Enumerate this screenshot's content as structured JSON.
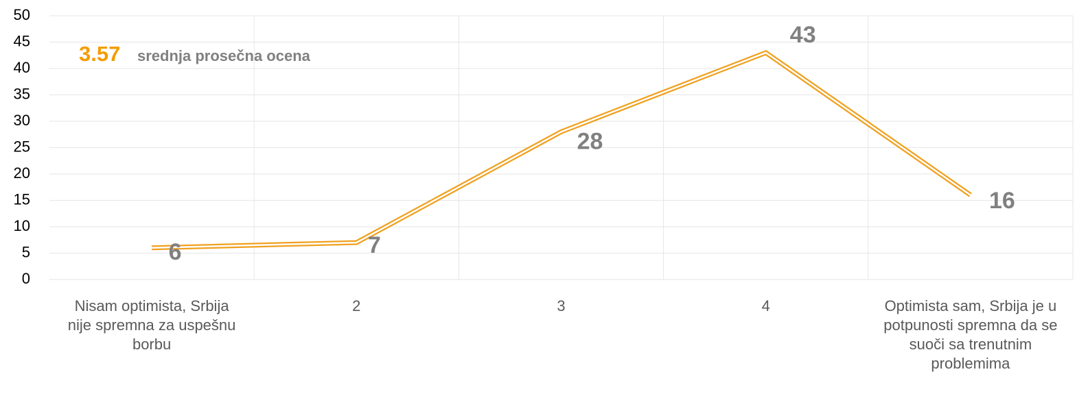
{
  "chart_data": {
    "type": "line",
    "annotation_value": 3.57,
    "annotation": "srednja prosečna ocena",
    "categories": [
      "Nisam optimista, Srbija nije spremna za uspešnu borbu",
      "2",
      "3",
      "4",
      "Optimista sam, Srbija je u potpunosti spremna da se suoči sa trenutnim problemima"
    ],
    "values": [
      6,
      7,
      28,
      43,
      16
    ],
    "color": "#f0a01e",
    "ylim": [
      0,
      50
    ],
    "yticks": [
      0,
      5,
      10,
      15,
      20,
      25,
      30,
      35,
      40,
      45,
      50
    ],
    "grid": true
  }
}
